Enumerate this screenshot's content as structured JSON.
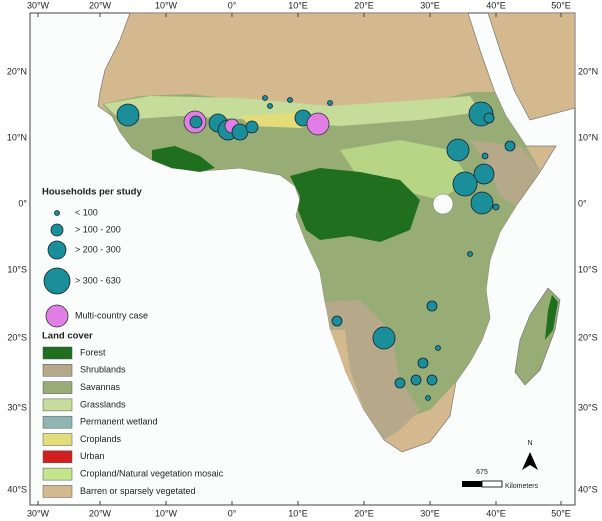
{
  "map": {
    "lon_ticks": [
      "30°W",
      "20°W",
      "10°W",
      "0°",
      "10°E",
      "20°E",
      "30°E",
      "40°E",
      "50°E"
    ],
    "lat_ticks": [
      "20°N",
      "10°N",
      "0°",
      "10°S",
      "20°S",
      "30°S",
      "40°S"
    ],
    "households_title": "Households per study",
    "households": [
      "< 100",
      "> 100 - 200",
      "> 200 - 300",
      "> 300 - 630",
      "Multi-country case"
    ],
    "landcover_title": "Land cover",
    "landcover": [
      {
        "label": "Forest",
        "color": "#1f6f1f"
      },
      {
        "label": "Shrublands",
        "color": "#b5a98a"
      },
      {
        "label": "Savannas",
        "color": "#98ad76"
      },
      {
        "label": "Grasslands",
        "color": "#c6dc9a"
      },
      {
        "label": "Permanent wetland",
        "color": "#8fb5b2"
      },
      {
        "label": "Croplands",
        "color": "#e2dc7a"
      },
      {
        "label": "Urban",
        "color": "#d11f1f"
      },
      {
        "label": "Cropland/Natural vegetation mosaic",
        "color": "#c4e58c"
      },
      {
        "label": "Barren or sparsely vegetated",
        "color": "#d4b98e"
      }
    ],
    "scale_value": "675",
    "scale_unit": "Kilometers",
    "north": "N"
  }
}
